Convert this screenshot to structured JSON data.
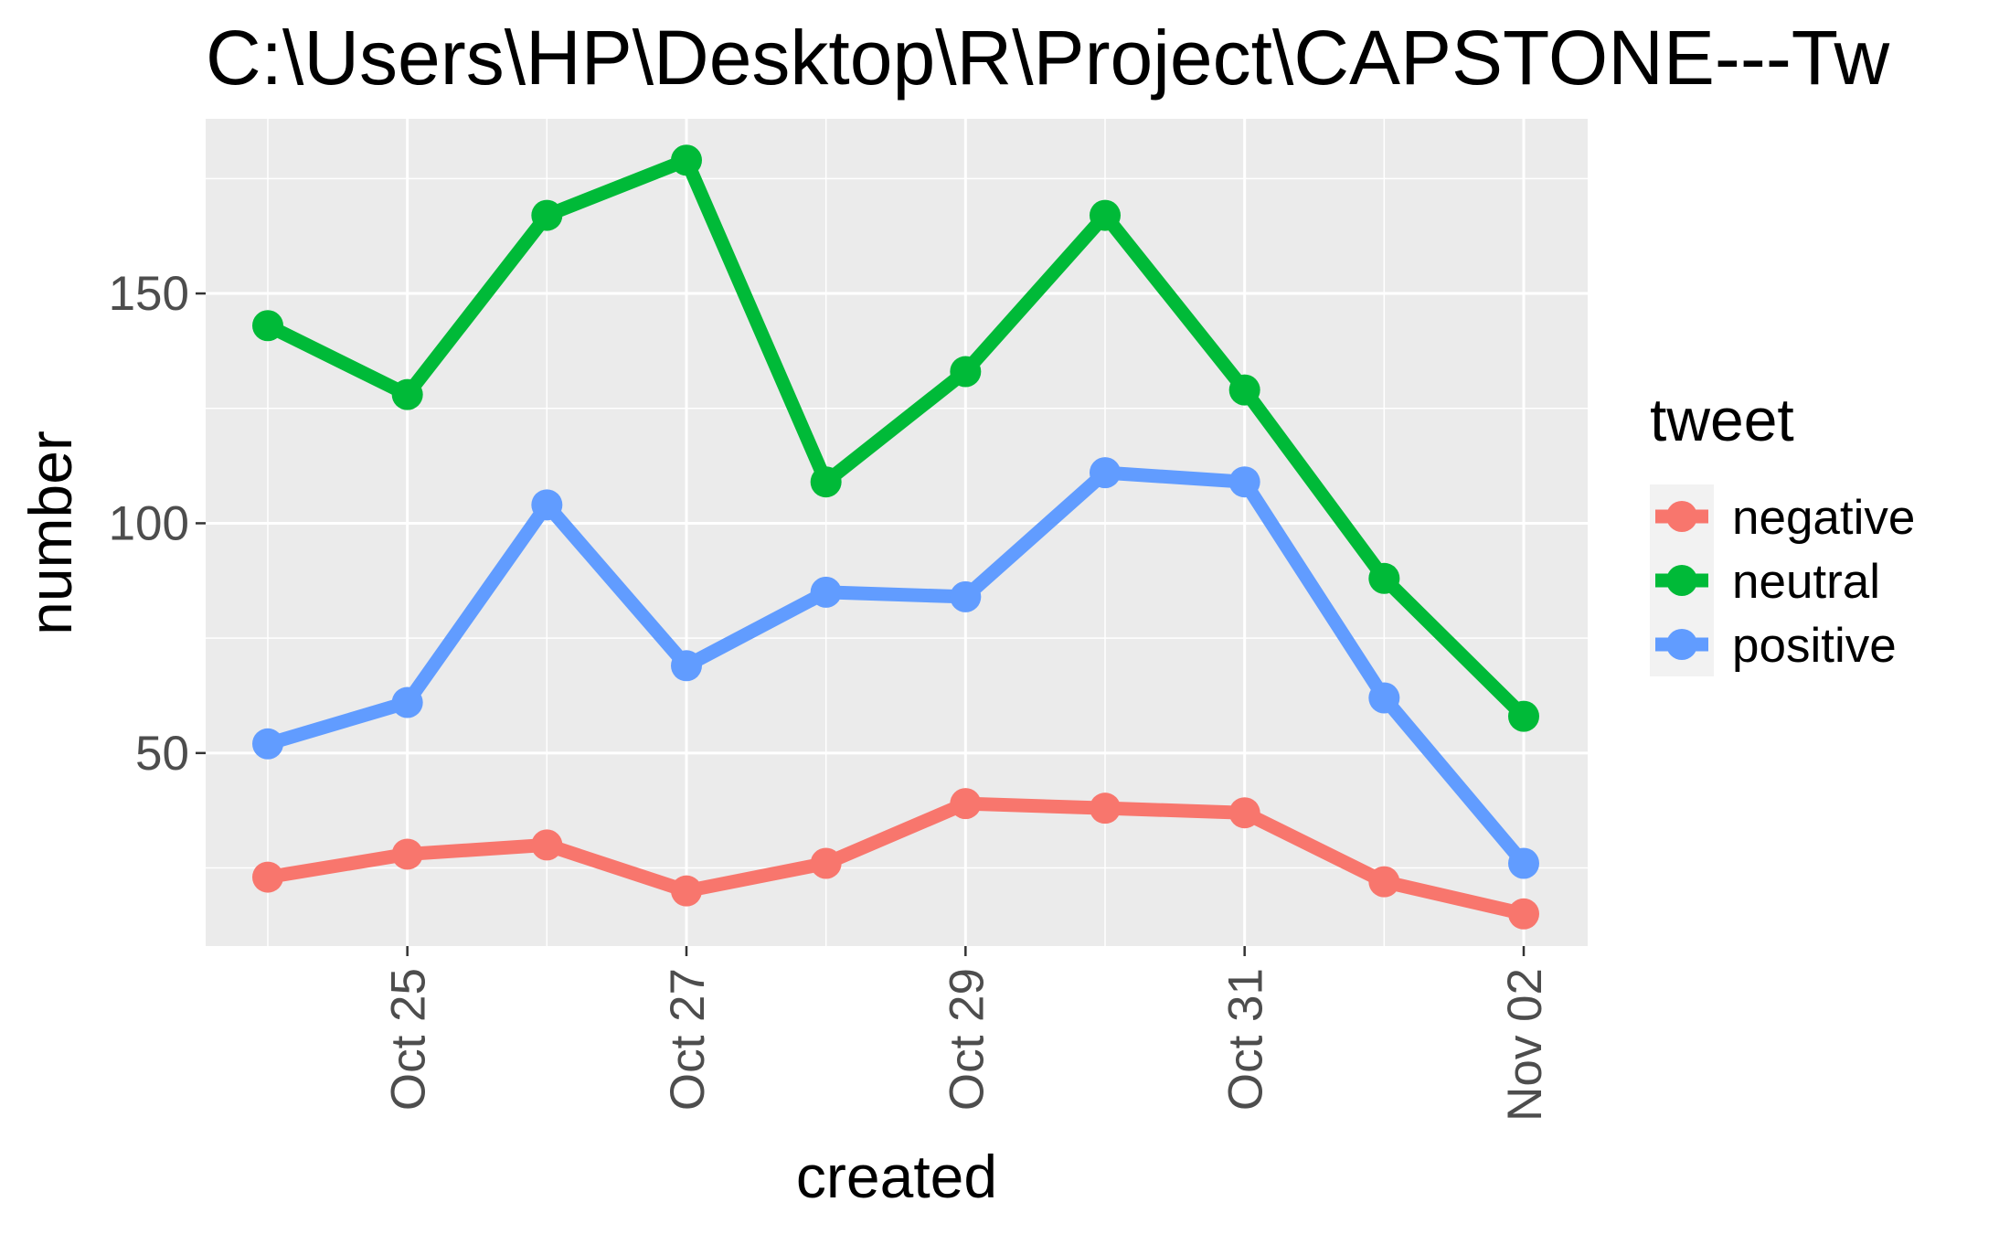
{
  "chart_data": {
    "type": "line",
    "title": "C:\\Users\\HP\\Desktop\\R\\Project\\CAPSTONE---Tw",
    "xlabel": "created",
    "ylabel": "number",
    "x": [
      "Oct 24",
      "Oct 25",
      "Oct 26",
      "Oct 27",
      "Oct 28",
      "Oct 29",
      "Oct 30",
      "Oct 31",
      "Nov 01",
      "Nov 02"
    ],
    "x_ticks": [
      "Oct 25",
      "Oct 27",
      "Oct 29",
      "Oct 31",
      "Nov 02"
    ],
    "y_ticks": [
      50,
      100,
      150
    ],
    "ylim": [
      8,
      188
    ],
    "grid": true,
    "legend": {
      "title": "tweet",
      "placement": "right"
    },
    "series": [
      {
        "name": "negative",
        "color": "#F8766D",
        "values": [
          23,
          28,
          30,
          20,
          26,
          39,
          38,
          37,
          22,
          15
        ]
      },
      {
        "name": "neutral",
        "color": "#00BA38",
        "values": [
          143,
          128,
          167,
          179,
          109,
          133,
          167,
          129,
          88,
          58
        ]
      },
      {
        "name": "positive",
        "color": "#619CFF",
        "values": [
          52,
          61,
          104,
          69,
          85,
          84,
          111,
          109,
          62,
          26
        ]
      }
    ]
  }
}
